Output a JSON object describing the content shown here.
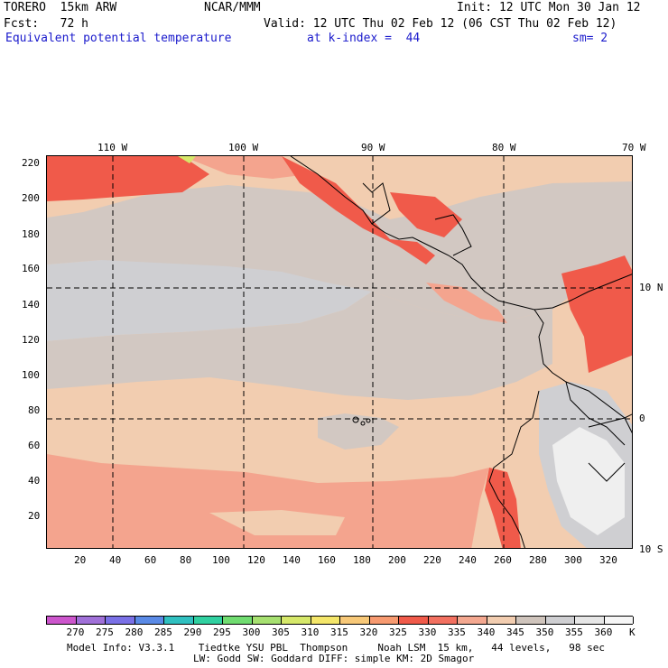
{
  "header": {
    "line1_left": "TORERO  15km ARW",
    "line1_center": "NCAR/MMM",
    "line1_right": "Init: 12 UTC Mon 30 Jan 12",
    "line2_left": "Fcst:   72 h",
    "line2_right": "Valid: 12 UTC Thu 02 Feb 12 (06 CST Thu 02 Feb 12)",
    "line3_field": "Equivalent potential temperature",
    "line3_level": "at k-index =  44",
    "line3_smooth": "sm= 2"
  },
  "map": {
    "top_lon_labels": [
      "110 W",
      "100 W",
      "90 W",
      "80 W",
      "70 W"
    ],
    "right_lat_labels": [
      "10 N",
      "0",
      "10 S"
    ],
    "y_ticks": [
      "220",
      "200",
      "180",
      "160",
      "140",
      "120",
      "100",
      "80",
      "60",
      "40",
      "20"
    ],
    "x_ticks": [
      "20",
      "40",
      "60",
      "80",
      "100",
      "120",
      "140",
      "160",
      "180",
      "200",
      "220",
      "240",
      "260",
      "280",
      "300",
      "320"
    ]
  },
  "colorbar": {
    "labels": [
      "270",
      "275",
      "280",
      "285",
      "290",
      "295",
      "300",
      "305",
      "310",
      "315",
      "320",
      "325",
      "330",
      "335",
      "340",
      "345",
      "350",
      "355",
      "360"
    ],
    "unit": "K",
    "colors": [
      "#cc55cc",
      "#a070d8",
      "#7a70e6",
      "#5a8ae6",
      "#30c0c0",
      "#30d0a0",
      "#70dc70",
      "#a6e070",
      "#d6e86a",
      "#f4e66a",
      "#f7c878",
      "#f79a70",
      "#f05a4a",
      "#f27060",
      "#f4a890",
      "#f2cdb0",
      "#cfc4bc",
      "#cfcfd2",
      "#e6e6e6",
      "#f6f6f6"
    ]
  },
  "footer": {
    "line1": "Model Info: V3.3.1    Tiedtke YSU PBL  Thompson     Noah LSM  15 km,   44 levels,   98 sec",
    "line2": "LW: Godd SW: Goddard DIFF: simple KM: 2D Smagor"
  },
  "fill_colors": {
    "peach": "#f2cdb0",
    "gray": "#d2c8c2",
    "lightgray": "#cfcfd2",
    "salmon": "#f4a48e",
    "red": "#f05a4a",
    "white": "#efefef",
    "pale": "#e5e5e8"
  }
}
